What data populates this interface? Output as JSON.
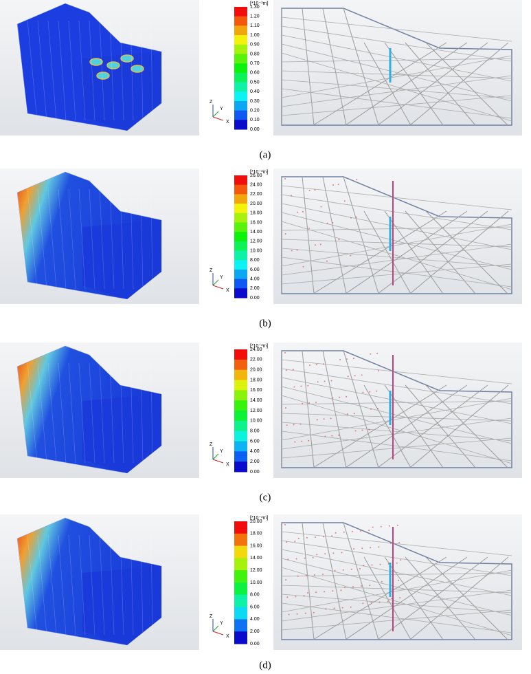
{
  "figure": {
    "panels": [
      {
        "caption": "(a)",
        "unit": "[*10⁻³m]",
        "axes": [
          "Z",
          "Y",
          "X"
        ],
        "ticks": [
          "1.30",
          "1.20",
          "1.10",
          "1.00",
          "0.90",
          "0.80",
          "0.70",
          "0.60",
          "0.50",
          "0.40",
          "0.30",
          "0.20",
          "0.10",
          "0.00"
        ]
      },
      {
        "caption": "(b)",
        "unit": "[*10⁻³m]",
        "axes": [
          "Z",
          "Y",
          "X"
        ],
        "ticks": [
          "26.00",
          "24.00",
          "22.00",
          "20.00",
          "18.00",
          "16.00",
          "14.00",
          "12.00",
          "10.00",
          "8.00",
          "6.00",
          "4.00",
          "2.00",
          "0.00"
        ]
      },
      {
        "caption": "(c)",
        "unit": "[*10⁻³m]",
        "axes": [
          "Z",
          "Y",
          "X"
        ],
        "ticks": [
          "24.00",
          "22.00",
          "20.00",
          "18.00",
          "16.00",
          "14.00",
          "12.00",
          "10.00",
          "8.00",
          "6.00",
          "4.00",
          "2.00",
          "0.00"
        ]
      },
      {
        "caption": "(d)",
        "unit": "[*10⁻³m]",
        "axes": [
          "Z",
          "Y",
          "X"
        ],
        "ticks": [
          "20.00",
          "18.00",
          "16.00",
          "14.00",
          "12.00",
          "10.00",
          "8.00",
          "6.00",
          "4.00",
          "2.00",
          "0.00"
        ]
      }
    ]
  }
}
